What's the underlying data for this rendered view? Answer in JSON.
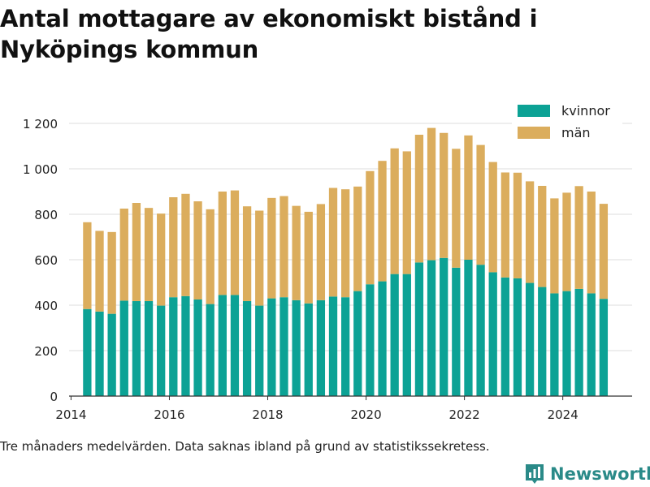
{
  "chart_data": {
    "type": "bar",
    "stacked": true,
    "title": "Antal mottagare av ekonomiskt bistånd i Nyköpings kommun",
    "xlabel": "",
    "ylabel": "",
    "ylim": [
      0,
      1200
    ],
    "yticks": [
      0,
      200,
      400,
      600,
      800,
      1000,
      1200
    ],
    "ytick_labels": [
      "0",
      "200",
      "400",
      "600",
      "800",
      "1 000",
      "1 200"
    ],
    "xlim": [
      2013.96,
      2025.41
    ],
    "xticks": [
      2014,
      2016,
      2018,
      2020,
      2022,
      2024
    ],
    "xtick_labels": [
      "2014",
      "2016",
      "2018",
      "2020",
      "2022",
      "2024"
    ],
    "grid": true,
    "legend_position": "top-right",
    "x": [
      2014.33,
      2014.58,
      2014.83,
      2015.08,
      2015.33,
      2015.58,
      2015.83,
      2016.08,
      2016.33,
      2016.58,
      2016.83,
      2017.08,
      2017.33,
      2017.58,
      2017.83,
      2018.08,
      2018.33,
      2018.58,
      2018.83,
      2019.08,
      2019.33,
      2019.58,
      2019.83,
      2020.08,
      2020.33,
      2020.58,
      2020.83,
      2021.08,
      2021.33,
      2021.58,
      2021.83,
      2022.08,
      2022.33,
      2022.58,
      2022.83,
      2023.08,
      2023.33,
      2023.58,
      2023.83,
      2024.08,
      2024.33,
      2024.58,
      2024.83
    ],
    "series": [
      {
        "name": "kvinnor",
        "color": "#0ca295",
        "values": [
          383,
          372,
          362,
          420,
          418,
          418,
          398,
          435,
          440,
          425,
          405,
          445,
          445,
          418,
          398,
          430,
          435,
          422,
          408,
          422,
          438,
          435,
          462,
          492,
          505,
          537,
          537,
          588,
          598,
          608,
          565,
          600,
          578,
          545,
          522,
          518,
          498,
          480,
          452,
          462,
          472,
          452,
          428
        ]
      },
      {
        "name": "män",
        "color": "#dbad5d",
        "values": [
          382,
          355,
          360,
          405,
          432,
          410,
          405,
          440,
          450,
          432,
          417,
          455,
          460,
          417,
          418,
          442,
          445,
          415,
          403,
          423,
          478,
          475,
          460,
          498,
          530,
          553,
          540,
          562,
          582,
          550,
          523,
          547,
          527,
          485,
          462,
          465,
          447,
          445,
          418,
          433,
          452,
          448,
          418
        ]
      }
    ],
    "footnote": "Tre månaders medelvärden. Data saknas ibland på grund av statistikssekretess."
  },
  "branding": {
    "logo_text": "Newsworthy",
    "logo_icon": "bar-chart-badge-icon",
    "logo_color": "#2a8a88"
  }
}
